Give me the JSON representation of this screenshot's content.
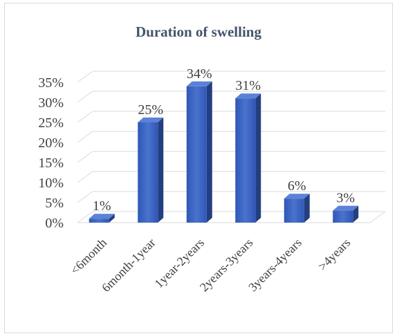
{
  "chart_data": {
    "type": "bar",
    "title": "Duration of swelling",
    "categories": [
      "<6month",
      "6month-1year",
      "1year-2years",
      "2years-3years",
      "3years-4years",
      ">4years"
    ],
    "values": [
      1,
      25,
      34,
      31,
      6,
      3
    ],
    "data_labels": [
      "1%",
      "25%",
      "34%",
      "31%",
      "6%",
      "3%"
    ],
    "ylim": [
      0,
      35
    ],
    "yticks": [
      "0%",
      "5%",
      "10%",
      "15%",
      "20%",
      "25%",
      "30%",
      "35%"
    ],
    "grid": true,
    "style": "3d-column",
    "bar_color": "#3f67c2"
  }
}
